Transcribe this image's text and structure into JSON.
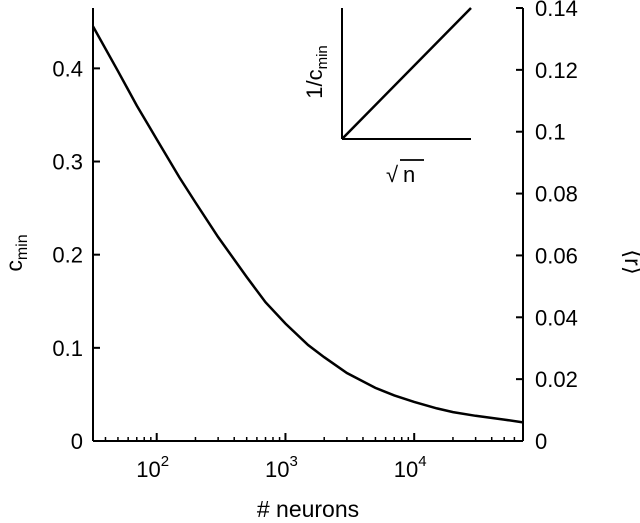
{
  "chart_data": {
    "type": "line",
    "xscale": "log",
    "xlim": [
      32,
      70000
    ],
    "xlabel": "# neurons",
    "xtick_labels": [
      {
        "base": "10",
        "exp": "2",
        "value": 100
      },
      {
        "base": "10",
        "exp": "3",
        "value": 1000
      },
      {
        "base": "10",
        "exp": "4",
        "value": 10000
      }
    ],
    "ylabel_main": "c",
    "ylabel_sub": "min",
    "ylim": [
      0,
      0.4648
    ],
    "yticks": [
      "0",
      "0.1",
      "0.2",
      "0.3",
      "0.4"
    ],
    "y2label": "⟨r⟩",
    "y2lim": [
      0.0,
      0.14
    ],
    "y2ticks": [
      "0",
      "0.02",
      "0.04",
      "0.06",
      "0.08",
      "0.1",
      "0.12",
      "0.14"
    ],
    "series": [
      {
        "x": [
          32,
          50,
          70,
          100,
          150,
          200,
          300,
          500,
          700,
          1000,
          1500,
          2000,
          3000,
          5000,
          7000,
          10000,
          15000,
          20000,
          30000,
          50000,
          70000
        ],
        "y": [
          0.445,
          0.397,
          0.36,
          0.324,
          0.283,
          0.256,
          0.219,
          0.176,
          0.149,
          0.126,
          0.103,
          0.09,
          0.073,
          0.057,
          0.049,
          0.042,
          0.035,
          0.031,
          0.027,
          0.023,
          0.02
        ]
      }
    ]
  },
  "inset": {
    "ylabel_main": "1/c",
    "ylabel_sub": "min",
    "xlabel_radical": "√",
    "xlabel_var": "n",
    "line": {
      "x": [
        0,
        1
      ],
      "y": [
        0,
        1
      ]
    }
  }
}
